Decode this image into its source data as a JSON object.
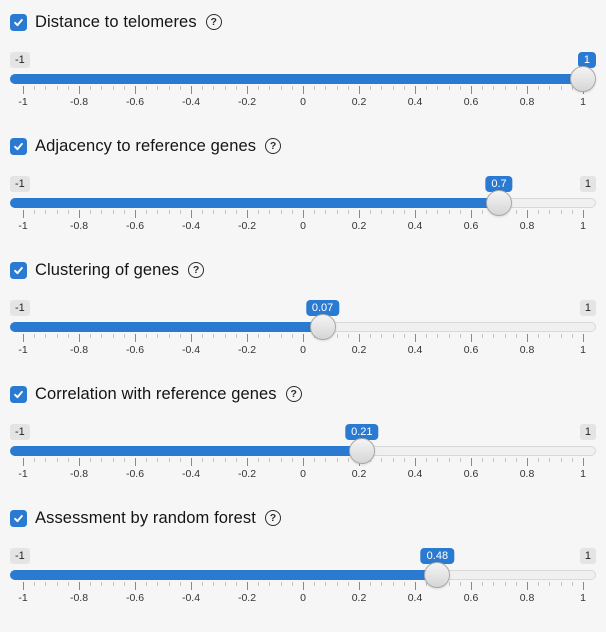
{
  "colors": {
    "accent": "#2b7ad2",
    "background": "#f6f6f6"
  },
  "help_glyph": "?",
  "tick_labels": [
    "-1",
    "-0.8",
    "-0.6",
    "-0.4",
    "-0.2",
    "0",
    "0.2",
    "0.4",
    "0.6",
    "0.8",
    "1"
  ],
  "sliders": [
    {
      "label": "Distance to telomeres",
      "checked": true,
      "min": -1,
      "max": 1,
      "value": 1,
      "value_label": "1",
      "min_label": "-1",
      "max_label": "1",
      "show_max_badge": false
    },
    {
      "label": "Adjacency to reference genes",
      "checked": true,
      "min": -1,
      "max": 1,
      "value": 0.7,
      "value_label": "0.7",
      "min_label": "-1",
      "max_label": "1",
      "show_max_badge": true
    },
    {
      "label": "Clustering of genes",
      "checked": true,
      "min": -1,
      "max": 1,
      "value": 0.07,
      "value_label": "0.07",
      "min_label": "-1",
      "max_label": "1",
      "show_max_badge": true
    },
    {
      "label": "Correlation with reference genes",
      "checked": true,
      "min": -1,
      "max": 1,
      "value": 0.21,
      "value_label": "0.21",
      "min_label": "-1",
      "max_label": "1",
      "show_max_badge": true
    },
    {
      "label": "Assessment by random forest",
      "checked": true,
      "min": -1,
      "max": 1,
      "value": 0.48,
      "value_label": "0.48",
      "min_label": "-1",
      "max_label": "1",
      "show_max_badge": true
    }
  ]
}
